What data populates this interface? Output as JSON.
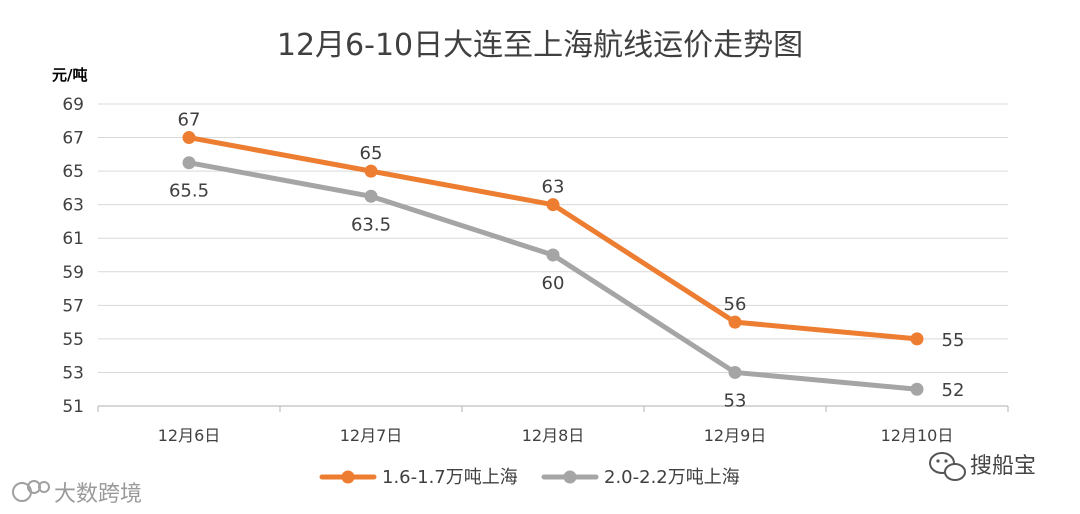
{
  "chart_data": {
    "type": "line",
    "title": "12月6-10日大连至上海航线运价走势图",
    "ylabel": "元/吨",
    "xlabel": "",
    "categories": [
      "12月6日",
      "12月7日",
      "12月8日",
      "12月9日",
      "12月10日"
    ],
    "ylim": [
      51,
      69
    ],
    "yticks": [
      51,
      53,
      55,
      57,
      59,
      61,
      63,
      65,
      67,
      69
    ],
    "grid": true,
    "legend_position": "bottom",
    "series": [
      {
        "name": "1.6-1.7万吨上海",
        "values": [
          67,
          65,
          63,
          56,
          55
        ],
        "labels": [
          "67",
          "65",
          "63",
          "56",
          "55"
        ],
        "color": "#ED7D31"
      },
      {
        "name": "2.0-2.2万吨上海",
        "values": [
          65.5,
          63.5,
          60,
          53,
          52
        ],
        "labels": [
          "65.5",
          "63.5",
          "60",
          "53",
          "52"
        ],
        "color": "#A5A5A5"
      }
    ]
  },
  "watermarks": {
    "left": "大数跨境",
    "right": "搜船宝"
  }
}
